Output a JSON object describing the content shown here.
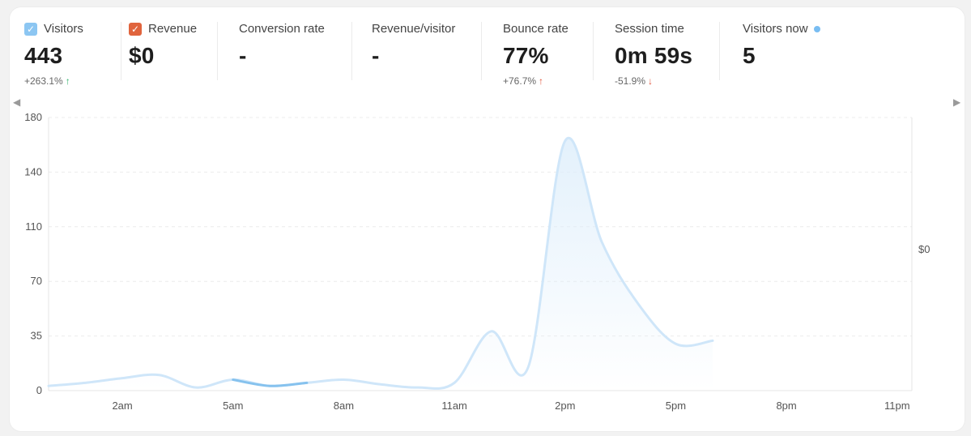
{
  "metrics": {
    "visitors": {
      "label": "Visitors",
      "value": "443",
      "change": "+263.1%",
      "change_icon": "arrow-up-green"
    },
    "revenue": {
      "label": "Revenue",
      "value": "$0"
    },
    "conversion_rate": {
      "label": "Conversion rate",
      "value": "-"
    },
    "revenue_per_visitor": {
      "label": "Revenue/visitor",
      "value": "-"
    },
    "bounce_rate": {
      "label": "Bounce rate",
      "value": "77%",
      "change": "+76.7%",
      "change_icon": "arrow-up-red"
    },
    "session_time": {
      "label": "Session time",
      "value": "0m 59s",
      "change": "-51.9%",
      "change_icon": "arrow-down-red"
    },
    "visitors_now": {
      "label": "Visitors now",
      "value": "5"
    }
  },
  "colors": {
    "visitors_checkbox": "#8cc6f2",
    "revenue_checkbox": "#e0643d",
    "line": "#cfe6f9",
    "highlight_line": "#86c2ee",
    "live_dot": "#79bdf2"
  },
  "chart_data": {
    "type": "line",
    "x": [
      "12am",
      "1am",
      "2am",
      "3am",
      "4am",
      "5am",
      "6am",
      "7am",
      "8am",
      "9am",
      "10am",
      "11am",
      "12pm",
      "1pm",
      "2pm",
      "3pm",
      "4pm",
      "5pm",
      "6pm"
    ],
    "series": [
      {
        "values": [
          3,
          5,
          8,
          10,
          2,
          7,
          3,
          5,
          7,
          4,
          2,
          5,
          38,
          15,
          160,
          95,
          55,
          30,
          32
        ]
      }
    ],
    "highlight_range": [
      "5am",
      "7am"
    ],
    "x_ticks": [
      "2am",
      "5am",
      "8am",
      "11am",
      "2pm",
      "5pm",
      "8pm",
      "11pm"
    ],
    "y_ticks": [
      "0",
      "35",
      "70",
      "110",
      "140",
      "180"
    ],
    "y_tick_values": [
      0,
      35,
      70,
      105,
      140,
      175
    ],
    "right_axis_label": "$0",
    "ylim": [
      0,
      175
    ],
    "xlim_hours": [
      0,
      23.4
    ],
    "grid": "horizontal-dashed",
    "legend": "none"
  }
}
